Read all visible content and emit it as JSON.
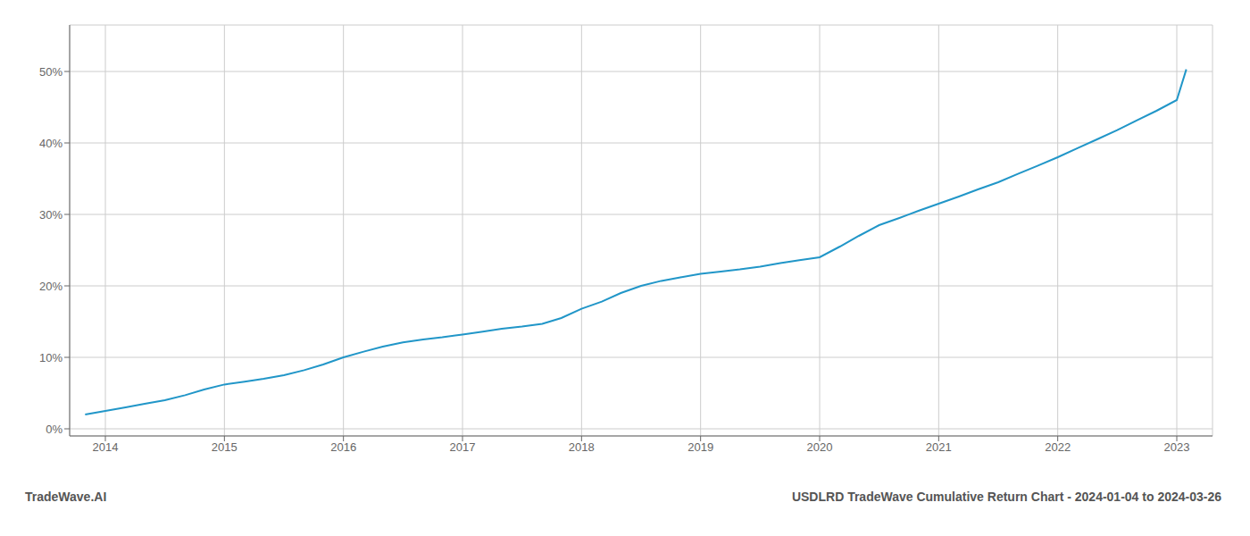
{
  "chart_data": {
    "type": "line",
    "title": "USDLRD TradeWave Cumulative Return Chart - 2024-01-04 to 2024-03-26",
    "annotations": [
      "TradeWave.AI"
    ],
    "x": [
      2013.83,
      2014.0,
      2014.17,
      2014.33,
      2014.5,
      2014.67,
      2014.83,
      2015.0,
      2015.17,
      2015.33,
      2015.5,
      2015.67,
      2015.83,
      2016.0,
      2016.17,
      2016.33,
      2016.5,
      2016.67,
      2016.83,
      2017.0,
      2017.17,
      2017.33,
      2017.5,
      2017.67,
      2017.83,
      2018.0,
      2018.17,
      2018.33,
      2018.5,
      2018.67,
      2018.83,
      2019.0,
      2019.17,
      2019.33,
      2019.5,
      2019.67,
      2019.83,
      2020.0,
      2020.17,
      2020.33,
      2020.5,
      2020.67,
      2020.83,
      2021.0,
      2021.17,
      2021.33,
      2021.5,
      2021.67,
      2021.83,
      2022.0,
      2022.17,
      2022.33,
      2022.5,
      2022.67,
      2022.83,
      2023.0,
      2023.08
    ],
    "values": [
      0.02,
      0.025,
      0.03,
      0.035,
      0.04,
      0.047,
      0.055,
      0.062,
      0.066,
      0.07,
      0.075,
      0.082,
      0.09,
      0.1,
      0.108,
      0.115,
      0.121,
      0.125,
      0.128,
      0.132,
      0.136,
      0.14,
      0.143,
      0.147,
      0.155,
      0.168,
      0.178,
      0.19,
      0.2,
      0.207,
      0.212,
      0.217,
      0.22,
      0.223,
      0.227,
      0.232,
      0.236,
      0.24,
      0.255,
      0.27,
      0.285,
      0.295,
      0.305,
      0.315,
      0.325,
      0.335,
      0.345,
      0.357,
      0.368,
      0.38,
      0.393,
      0.405,
      0.418,
      0.432,
      0.445,
      0.46,
      0.503
    ],
    "color": "#2196c8",
    "xlim": [
      2013.7,
      2023.3
    ],
    "ylim": [
      -0.01,
      0.565
    ],
    "xticks": [
      2014,
      2015,
      2016,
      2017,
      2018,
      2019,
      2020,
      2021,
      2022,
      2023
    ],
    "yticks": [
      {
        "value": 0.0,
        "label": "0%"
      },
      {
        "value": 0.1,
        "label": "10%"
      },
      {
        "value": 0.2,
        "label": "20%"
      },
      {
        "value": 0.3,
        "label": "30%"
      },
      {
        "value": 0.4,
        "label": "40%"
      },
      {
        "value": 0.5,
        "label": "50%"
      }
    ],
    "grid": true
  }
}
